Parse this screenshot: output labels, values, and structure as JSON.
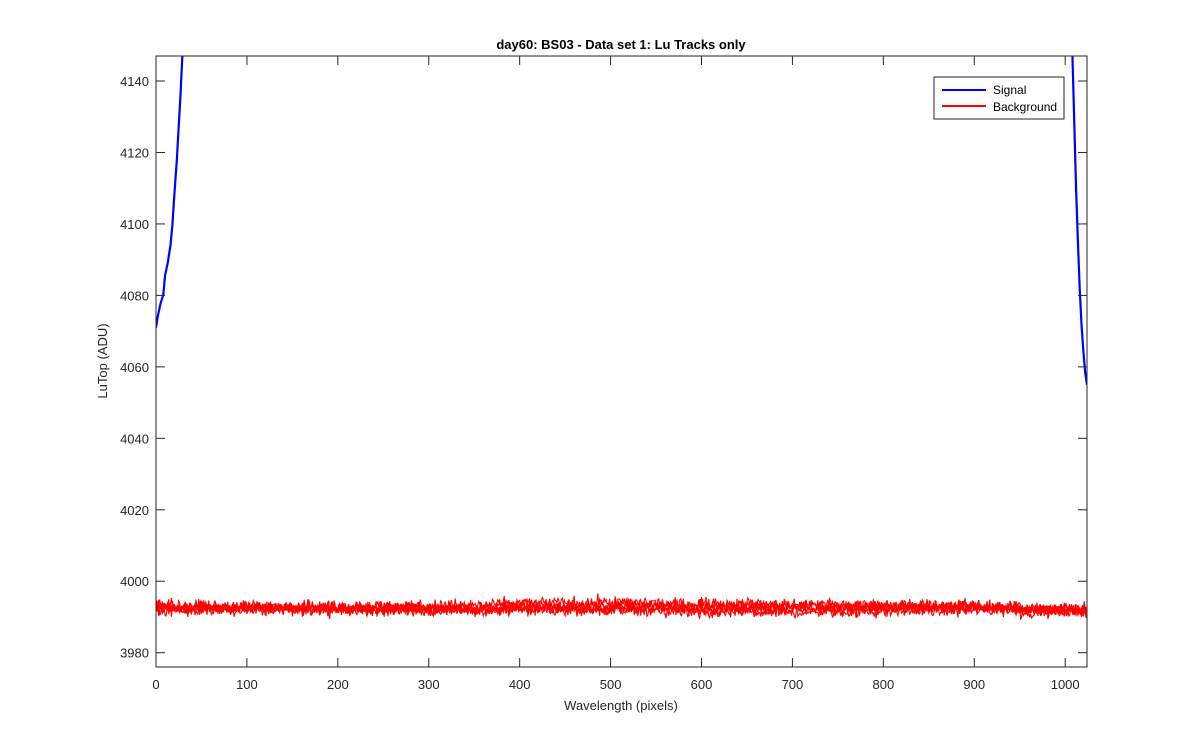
{
  "chart_data": {
    "type": "line",
    "title": "day60: BS03 - Data set 1: Lu Tracks only",
    "xlabel": "Wavelength (pixels)",
    "ylabel": "LuTop (ADU)",
    "xlim": [
      0,
      1024
    ],
    "ylim": [
      3976,
      4147
    ],
    "xticks": [
      0,
      100,
      200,
      300,
      400,
      500,
      600,
      700,
      800,
      900,
      1000
    ],
    "yticks": [
      3980,
      4000,
      4020,
      4040,
      4060,
      4080,
      4100,
      4120,
      4140
    ],
    "grid": false,
    "legend_position": "top-right",
    "legend": [
      "Signal",
      "Background"
    ],
    "series": [
      {
        "name": "Signal",
        "color": "#0000ff",
        "segments": [
          {
            "x": [
              0,
              2,
              5,
              8,
              10,
              13,
              16,
              18,
              20,
              23,
              25,
              27,
              28,
              29
            ],
            "y": [
              4071,
              4074,
              4078,
              4080,
              4085,
              4089,
              4094,
              4100,
              4107,
              4118,
              4127,
              4136,
              4142,
              4147
            ]
          },
          {
            "x": [
              1008,
              1010,
              1012,
              1014,
              1016,
              1018,
              1020,
              1022,
              1024
            ],
            "y": [
              4147,
              4128,
              4110,
              4095,
              4082,
              4072,
              4064,
              4058,
              4055
            ]
          }
        ]
      },
      {
        "name": "Background",
        "color": "#ff0000",
        "traces": 5,
        "mean": 3992.5,
        "spread": 2.8,
        "x_range": [
          0,
          1024
        ]
      }
    ]
  }
}
